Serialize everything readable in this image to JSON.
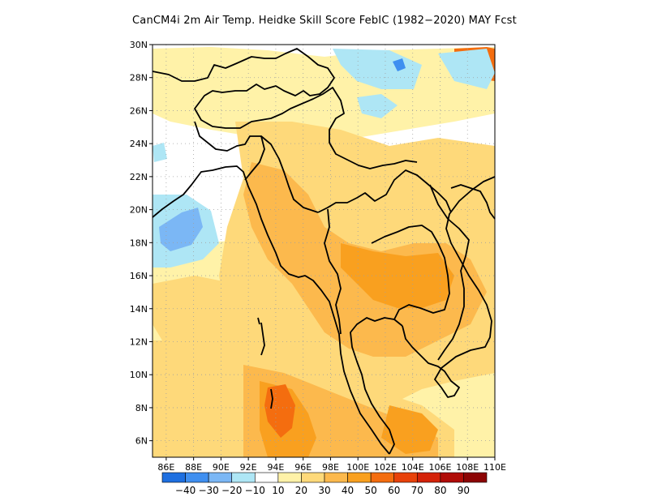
{
  "title": "CanCM4i  2m Air Temp. Heidke Skill Score FebIC (1982−2020) MAY Fcst",
  "map": {
    "lon_ticks": [
      "86E",
      "88E",
      "90E",
      "92E",
      "94E",
      "96E",
      "98E",
      "100E",
      "102E",
      "104E",
      "106E",
      "108E",
      "110E"
    ],
    "lat_ticks": [
      "30N",
      "28N",
      "26N",
      "24N",
      "22N",
      "20N",
      "18N",
      "16N",
      "14N",
      "12N",
      "10N",
      "8N",
      "6N"
    ],
    "lon_range": [
      85,
      110
    ],
    "lat_range": [
      5,
      30
    ],
    "gridlines": "dotted"
  },
  "colorbar": {
    "labels": [
      "−40",
      "−30",
      "−20",
      "−10",
      "10",
      "20",
      "30",
      "40",
      "50",
      "60",
      "70",
      "80",
      "90"
    ],
    "colors": [
      "#1e6fe0",
      "#3f8ff0",
      "#7bb7f5",
      "#aee6f5",
      "#ffffff",
      "#fff2a8",
      "#fed97a",
      "#fcb94d",
      "#f9a01f",
      "#f46d0f",
      "#e8420a",
      "#d42208",
      "#b00c07",
      "#8c0404"
    ]
  },
  "palette": {
    "land_moderate": "#fed97a",
    "land_high": "#fcb94d",
    "land_higher": "#f9a01f",
    "land_peak": "#f46d0f",
    "weak_positive": "#fff2a8",
    "weak_negative": "#aee6f5",
    "negative": "#7bb7f5",
    "strong_negative": "#3f8ff0"
  }
}
